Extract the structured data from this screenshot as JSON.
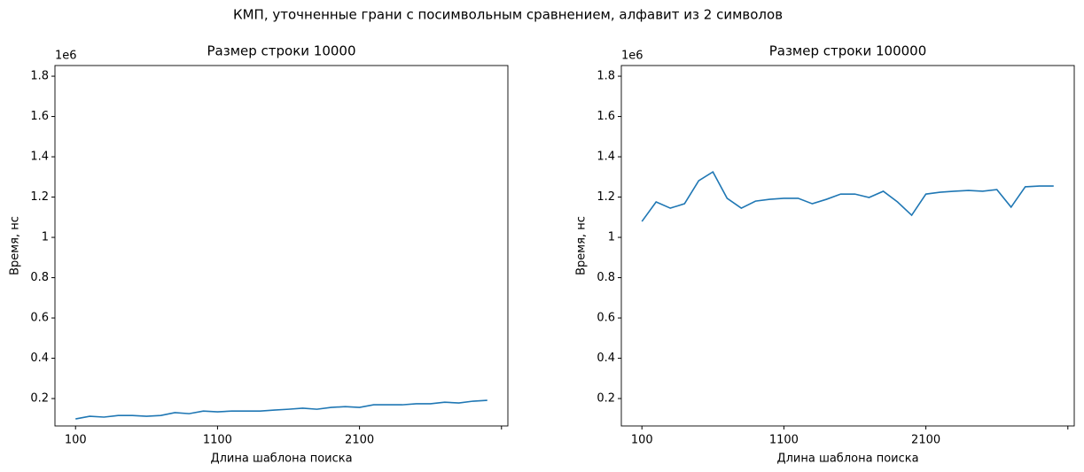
{
  "suptitle": "КМП, уточненные грани с посимвольным сравнением, алфавит из 2 символов",
  "chart_data": [
    {
      "type": "line",
      "title": "Размер строки 10000",
      "xlabel": "Длина шаблона поиска",
      "ylabel": "Время, нс",
      "y_offset_label": "1e6",
      "x": [
        100,
        200,
        300,
        400,
        500,
        600,
        700,
        800,
        900,
        1000,
        1100,
        1200,
        1300,
        1400,
        1500,
        1600,
        1700,
        1800,
        1900,
        2000,
        2100,
        2200,
        2300,
        2400,
        2500,
        2600,
        2700,
        2800,
        2900,
        3000
      ],
      "series": [
        {
          "color": "#1f77b4",
          "values": [
            0.099,
            0.112,
            0.108,
            0.116,
            0.116,
            0.112,
            0.116,
            0.13,
            0.125,
            0.138,
            0.134,
            0.138,
            0.138,
            0.138,
            0.143,
            0.147,
            0.152,
            0.147,
            0.156,
            0.16,
            0.156,
            0.169,
            0.169,
            0.169,
            0.174,
            0.174,
            0.182,
            0.178,
            0.187,
            0.191
          ]
        }
      ],
      "xlim": [
        -45,
        3145
      ],
      "xticks": [
        100,
        1100,
        2100,
        {
          "value": 3100,
          "label": null
        }
      ],
      "ylim": [
        0.064,
        1.853
      ],
      "yticks": [
        0.2,
        0.4,
        0.6,
        0.8,
        1.0,
        1.2,
        1.4,
        1.6,
        1.8
      ]
    },
    {
      "type": "line",
      "title": "Размер строки 100000",
      "xlabel": "Длина шаблона поиска",
      "ylabel": "Время, нс",
      "y_offset_label": "1e6",
      "x": [
        100,
        200,
        300,
        400,
        500,
        600,
        700,
        800,
        900,
        1000,
        1100,
        1200,
        1300,
        1400,
        1500,
        1600,
        1700,
        1800,
        1900,
        2000,
        2100,
        2200,
        2300,
        2400,
        2500,
        2600,
        2700,
        2800,
        2900,
        3000
      ],
      "series": [
        {
          "color": "#1f77b4",
          "values": [
            1.079,
            1.176,
            1.145,
            1.167,
            1.281,
            1.325,
            1.194,
            1.145,
            1.18,
            1.189,
            1.194,
            1.194,
            1.167,
            1.189,
            1.215,
            1.215,
            1.198,
            1.229,
            1.176,
            1.11,
            1.215,
            1.224,
            1.229,
            1.233,
            1.229,
            1.237,
            1.15,
            1.251,
            1.255,
            1.255
          ]
        }
      ],
      "xlim": [
        -45,
        3145
      ],
      "xticks": [
        100,
        1100,
        2100,
        {
          "value": 3100,
          "label": null
        }
      ],
      "ylim": [
        0.064,
        1.853
      ],
      "yticks": [
        0.2,
        0.4,
        0.6,
        0.8,
        1.0,
        1.2,
        1.4,
        1.6,
        1.8
      ]
    }
  ]
}
